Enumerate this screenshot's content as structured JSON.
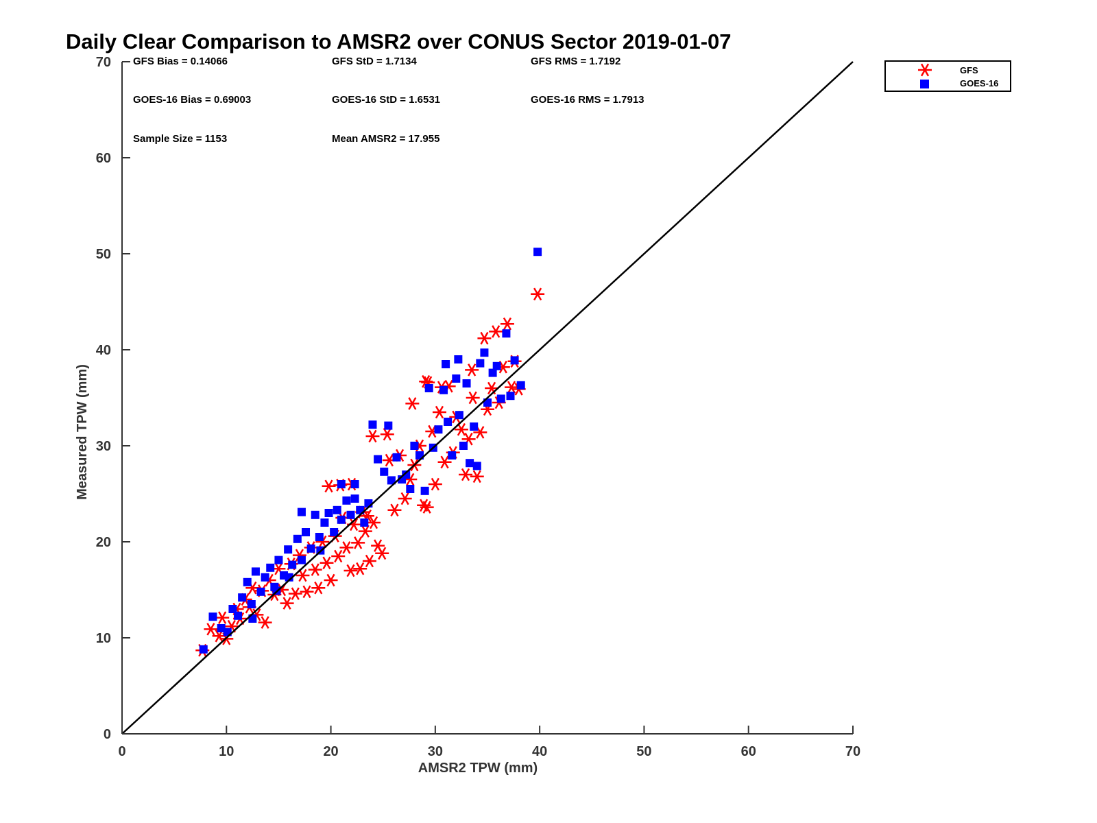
{
  "chart_data": {
    "type": "scatter",
    "title": "Daily Clear Comparison to AMSR2 over CONUS Sector 2019-01-07",
    "xlabel": "AMSR2 TPW (mm)",
    "ylabel": "Measured TPW (mm)",
    "xlim": [
      0,
      70
    ],
    "ylim": [
      0,
      70
    ],
    "xticks": [
      "0",
      "10",
      "20",
      "30",
      "40",
      "50",
      "60",
      "70"
    ],
    "yticks": [
      "0",
      "10",
      "20",
      "30",
      "40",
      "50",
      "60",
      "70"
    ],
    "reference_line": {
      "name": "1:1 line",
      "from": [
        0,
        0
      ],
      "to": [
        70,
        70
      ],
      "color": "#000000"
    },
    "stats": {
      "gfs_bias": "GFS Bias = 0.14066",
      "gfs_std": "GFS StD = 1.7134",
      "gfs_rms": "GFS RMS = 1.7192",
      "goes_bias": "GOES-16 Bias = 0.69003",
      "goes_std": "GOES-16 StD = 1.6531",
      "goes_rms": "GOES-16 RMS = 1.7913",
      "sample_size": "Sample Size = 1153",
      "mean_amsr2": "Mean AMSR2 = 17.955"
    },
    "legend": {
      "position": "top-right-outside",
      "entries": [
        "GFS",
        "GOES-16"
      ]
    },
    "series": [
      {
        "name": "GFS",
        "marker": "asterisk",
        "color": "#ff0000",
        "points": [
          [
            7.7,
            8.7
          ],
          [
            8.5,
            10.9
          ],
          [
            9.3,
            10.2
          ],
          [
            9.6,
            12.1
          ],
          [
            10.0,
            9.9
          ],
          [
            10.5,
            11.2
          ],
          [
            11.0,
            13.0
          ],
          [
            11.3,
            12.0
          ],
          [
            11.8,
            14.0
          ],
          [
            12.2,
            13.2
          ],
          [
            12.5,
            15.2
          ],
          [
            12.9,
            12.4
          ],
          [
            13.4,
            14.9
          ],
          [
            13.7,
            11.6
          ],
          [
            14.1,
            16.0
          ],
          [
            14.6,
            14.5
          ],
          [
            15.0,
            17.2
          ],
          [
            15.3,
            15.0
          ],
          [
            15.8,
            13.6
          ],
          [
            16.2,
            17.7
          ],
          [
            16.6,
            14.6
          ],
          [
            17.0,
            18.6
          ],
          [
            17.3,
            16.5
          ],
          [
            17.7,
            14.8
          ],
          [
            18.1,
            19.4
          ],
          [
            18.5,
            17.1
          ],
          [
            18.8,
            15.2
          ],
          [
            19.2,
            20.0
          ],
          [
            19.6,
            17.8
          ],
          [
            20.0,
            16.0
          ],
          [
            20.4,
            20.6
          ],
          [
            20.7,
            18.5
          ],
          [
            21.1,
            22.5
          ],
          [
            21.5,
            19.4
          ],
          [
            21.9,
            17.0
          ],
          [
            22.2,
            21.8
          ],
          [
            22.6,
            19.9
          ],
          [
            23.0,
            23.1
          ],
          [
            23.3,
            21.1
          ],
          [
            23.7,
            18.0
          ],
          [
            24.1,
            22.0
          ],
          [
            24.5,
            19.6
          ],
          [
            24.9,
            18.8
          ],
          [
            24.0,
            31.0
          ],
          [
            25.4,
            31.2
          ],
          [
            25.6,
            28.5
          ],
          [
            26.1,
            23.3
          ],
          [
            26.6,
            29.0
          ],
          [
            27.1,
            24.5
          ],
          [
            27.6,
            26.5
          ],
          [
            28.0,
            28.0
          ],
          [
            28.5,
            30.0
          ],
          [
            28.9,
            23.8
          ],
          [
            29.3,
            36.6
          ],
          [
            29.7,
            31.5
          ],
          [
            30.0,
            26.0
          ],
          [
            30.4,
            33.5
          ],
          [
            30.9,
            28.3
          ],
          [
            31.3,
            36.2
          ],
          [
            31.7,
            29.3
          ],
          [
            32.0,
            33.0
          ],
          [
            32.5,
            31.7
          ],
          [
            32.9,
            27.0
          ],
          [
            33.2,
            30.7
          ],
          [
            33.6,
            35.0
          ],
          [
            34.0,
            26.8
          ],
          [
            34.3,
            31.4
          ],
          [
            34.7,
            41.2
          ],
          [
            35.0,
            33.8
          ],
          [
            35.4,
            36.0
          ],
          [
            35.8,
            41.9
          ],
          [
            36.1,
            34.5
          ],
          [
            36.5,
            38.2
          ],
          [
            36.9,
            42.7
          ],
          [
            37.3,
            36.1
          ],
          [
            37.6,
            38.8
          ],
          [
            38.0,
            35.9
          ],
          [
            39.8,
            45.8
          ],
          [
            22.0,
            26.0
          ],
          [
            19.8,
            25.8
          ],
          [
            27.8,
            34.4
          ],
          [
            29.1,
            36.7
          ],
          [
            30.6,
            36.1
          ],
          [
            33.5,
            37.9
          ],
          [
            20.9,
            25.9
          ],
          [
            22.8,
            17.2
          ],
          [
            29.2,
            23.6
          ],
          [
            23.5,
            22.7
          ]
        ]
      },
      {
        "name": "GOES-16",
        "marker": "square",
        "color": "#0000ff",
        "points": [
          [
            7.8,
            8.8
          ],
          [
            8.7,
            12.2
          ],
          [
            9.5,
            11.0
          ],
          [
            10.1,
            10.6
          ],
          [
            10.6,
            13.0
          ],
          [
            11.1,
            12.3
          ],
          [
            11.5,
            14.2
          ],
          [
            12.0,
            15.8
          ],
          [
            12.4,
            13.5
          ],
          [
            12.8,
            16.9
          ],
          [
            13.3,
            14.8
          ],
          [
            13.7,
            16.3
          ],
          [
            14.2,
            17.3
          ],
          [
            14.6,
            15.3
          ],
          [
            15.0,
            18.1
          ],
          [
            15.5,
            16.5
          ],
          [
            15.9,
            19.2
          ],
          [
            16.3,
            17.6
          ],
          [
            16.8,
            20.3
          ],
          [
            17.2,
            18.1
          ],
          [
            17.6,
            21.0
          ],
          [
            18.1,
            19.3
          ],
          [
            18.5,
            22.8
          ],
          [
            18.9,
            20.5
          ],
          [
            19.4,
            22.0
          ],
          [
            19.8,
            23.0
          ],
          [
            20.3,
            21.0
          ],
          [
            20.6,
            23.3
          ],
          [
            21.0,
            22.3
          ],
          [
            21.5,
            24.3
          ],
          [
            21.9,
            22.8
          ],
          [
            22.3,
            24.5
          ],
          [
            22.8,
            23.3
          ],
          [
            23.2,
            22.0
          ],
          [
            23.6,
            24.0
          ],
          [
            24.0,
            32.2
          ],
          [
            24.5,
            28.6
          ],
          [
            25.1,
            27.3
          ],
          [
            25.5,
            32.1
          ],
          [
            25.8,
            26.4
          ],
          [
            26.3,
            28.8
          ],
          [
            26.8,
            26.5
          ],
          [
            27.2,
            27.0
          ],
          [
            27.6,
            25.5
          ],
          [
            28.0,
            30.0
          ],
          [
            28.5,
            29.0
          ],
          [
            29.0,
            25.3
          ],
          [
            29.4,
            36.0
          ],
          [
            29.8,
            29.8
          ],
          [
            30.3,
            31.7
          ],
          [
            30.8,
            35.8
          ],
          [
            31.2,
            32.5
          ],
          [
            31.6,
            29.0
          ],
          [
            32.0,
            37.0
          ],
          [
            32.3,
            33.2
          ],
          [
            32.7,
            30.0
          ],
          [
            33.0,
            36.5
          ],
          [
            33.3,
            28.2
          ],
          [
            33.7,
            32.0
          ],
          [
            34.0,
            27.9
          ],
          [
            34.3,
            38.6
          ],
          [
            34.7,
            39.7
          ],
          [
            35.0,
            34.5
          ],
          [
            35.5,
            37.6
          ],
          [
            35.9,
            38.3
          ],
          [
            36.3,
            34.9
          ],
          [
            36.8,
            41.7
          ],
          [
            37.2,
            35.2
          ],
          [
            37.6,
            38.9
          ],
          [
            38.2,
            36.3
          ],
          [
            39.8,
            50.2
          ],
          [
            21.0,
            26.0
          ],
          [
            22.3,
            26.0
          ],
          [
            17.2,
            23.1
          ],
          [
            31.0,
            38.5
          ],
          [
            32.2,
            39.0
          ],
          [
            12.5,
            12.0
          ],
          [
            14.8,
            14.9
          ],
          [
            16.0,
            16.3
          ],
          [
            19.0,
            19.1
          ]
        ]
      }
    ]
  }
}
